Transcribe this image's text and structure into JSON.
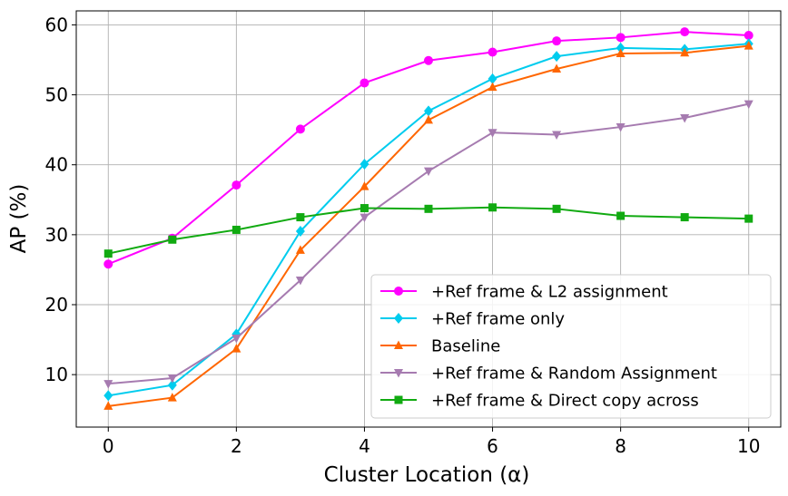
{
  "chart_data": {
    "type": "line",
    "xlabel": "Cluster Location (α)",
    "ylabel": "AP (%)",
    "xlim": [
      -0.5,
      10.5
    ],
    "ylim": [
      2.5,
      62
    ],
    "xticks": [
      0,
      2,
      4,
      6,
      8,
      10
    ],
    "yticks": [
      10,
      20,
      30,
      40,
      50,
      60
    ],
    "xtick_labels": [
      "0",
      "2",
      "4",
      "6",
      "8",
      "10"
    ],
    "ytick_labels": [
      "10",
      "20",
      "30",
      "40",
      "50",
      "60"
    ],
    "grid": true,
    "legend_position": "lower-right",
    "x": [
      0,
      1,
      2,
      3,
      4,
      5,
      6,
      7,
      8,
      9,
      10
    ],
    "series": [
      {
        "name": "+Ref frame & L2 assignment",
        "color": "#ff00ff",
        "marker": "circle",
        "values": [
          25.8,
          29.5,
          37.1,
          45.1,
          51.7,
          54.9,
          56.1,
          57.7,
          58.2,
          59.0,
          58.5
        ]
      },
      {
        "name": "+Ref frame only",
        "color": "#00ccee",
        "marker": "diamond",
        "values": [
          7.0,
          8.5,
          15.8,
          30.5,
          40.1,
          47.7,
          52.3,
          55.5,
          56.7,
          56.5,
          57.3
        ]
      },
      {
        "name": "Baseline",
        "color": "#ff6600",
        "marker": "triangle-up",
        "values": [
          5.5,
          6.7,
          13.7,
          27.8,
          36.9,
          46.4,
          51.1,
          53.7,
          55.9,
          56.0,
          57.0
        ]
      },
      {
        "name": "+Ref frame & Random Assignment",
        "color": "#a67bb0",
        "marker": "triangle-down",
        "values": [
          8.7,
          9.5,
          15.2,
          23.5,
          32.5,
          39.1,
          44.6,
          44.3,
          45.4,
          46.7,
          48.7
        ]
      },
      {
        "name": "+Ref frame & Direct copy across",
        "color": "#11aa11",
        "marker": "square",
        "values": [
          27.3,
          29.3,
          30.7,
          32.5,
          33.8,
          33.7,
          33.9,
          33.7,
          32.7,
          32.5,
          32.3
        ]
      }
    ]
  }
}
